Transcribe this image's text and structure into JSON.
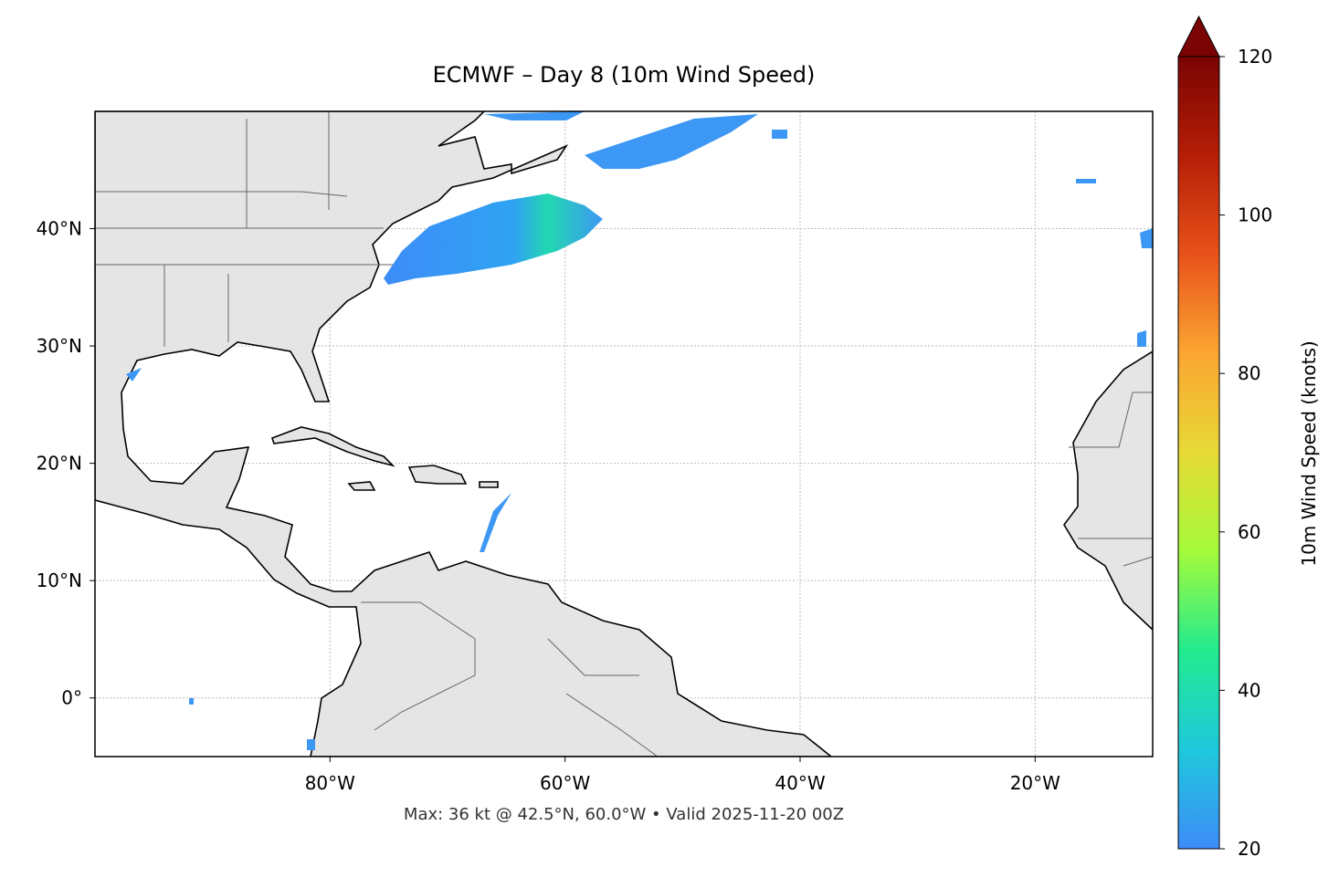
{
  "map": {
    "title": "ECMWF – Day 8 (10m Wind Speed)",
    "xlim": [
      -100,
      -10
    ],
    "ylim": [
      -5,
      50
    ],
    "grid": true,
    "xticks": [
      {
        "value": -80,
        "label": "80°W"
      },
      {
        "value": -60,
        "label": "60°W"
      },
      {
        "value": -40,
        "label": "40°W"
      },
      {
        "value": -20,
        "label": "20°W"
      }
    ],
    "yticks": [
      {
        "value": 0,
        "label": "0°"
      },
      {
        "value": 10,
        "label": "10°N"
      },
      {
        "value": 20,
        "label": "20°N"
      },
      {
        "value": 30,
        "label": "30°N"
      },
      {
        "value": 40,
        "label": "40°N"
      }
    ],
    "footer": "Max: 36 kt @ 42.5°N, 60.0°W • Valid 2025-11-20 00Z"
  },
  "colorbar": {
    "label": "10m Wind Speed (knots)",
    "lim": [
      20,
      120
    ],
    "ticks": [
      20,
      40,
      60,
      80,
      100,
      120
    ],
    "colors": [
      "#3d8cf8",
      "#1fc8dc",
      "#22eb8f",
      "#a4fb3a",
      "#e7d936",
      "#fba632",
      "#e8521a",
      "#b51e06",
      "#7a0403"
    ]
  }
}
